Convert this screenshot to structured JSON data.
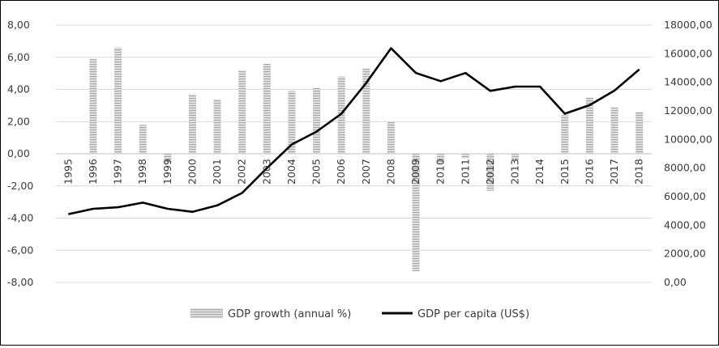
{
  "chart_data": {
    "type": "bar+line",
    "categories": [
      "1995",
      "1996",
      "1997",
      "1998",
      "1999",
      "2000",
      "2001",
      "2002",
      "2003",
      "2004",
      "2005",
      "2006",
      "2007",
      "2008",
      "2009",
      "2010",
      "2011",
      "2012",
      "2013",
      "2014",
      "2015",
      "2016",
      "2017",
      "2018"
    ],
    "series": [
      {
        "name": "GDP growth (annual %)",
        "type": "bar",
        "axis": "left",
        "values": [
          0.0,
          5.9,
          6.6,
          1.8,
          -0.6,
          3.7,
          3.4,
          5.2,
          5.6,
          3.9,
          4.1,
          4.8,
          5.3,
          2.0,
          -7.3,
          -0.6,
          -0.3,
          -2.3,
          -0.4,
          0.0,
          2.4,
          3.5,
          2.9,
          2.6
        ]
      },
      {
        "name": "GDP per capita (US$)",
        "type": "line",
        "axis": "right",
        "values": [
          4780,
          5150,
          5260,
          5580,
          5150,
          4940,
          5390,
          6260,
          8000,
          9650,
          10550,
          11800,
          13950,
          16380,
          14650,
          14080,
          14650,
          13400,
          13700,
          13700,
          11800,
          12400,
          13420,
          14900
        ]
      }
    ],
    "y_left": {
      "ticks": [
        "8,00",
        "6,00",
        "4,00",
        "2,00",
        "0,00",
        "-2,00",
        "-4,00",
        "-6,00",
        "-8,00"
      ],
      "range": [
        -8,
        8
      ]
    },
    "y_right": {
      "ticks": [
        "18000,00",
        "16000,00",
        "14000,00",
        "12000,00",
        "10000,00",
        "8000,00",
        "6000,00",
        "4000,00",
        "2000,00",
        "0,00"
      ],
      "range": [
        0,
        18000
      ]
    },
    "grid": true,
    "legend_position": "bottom",
    "colors": {
      "bar": "#bdbdbd",
      "line": "#000000",
      "grid": "#d9d9d9",
      "text": "#3a3a3a"
    }
  }
}
